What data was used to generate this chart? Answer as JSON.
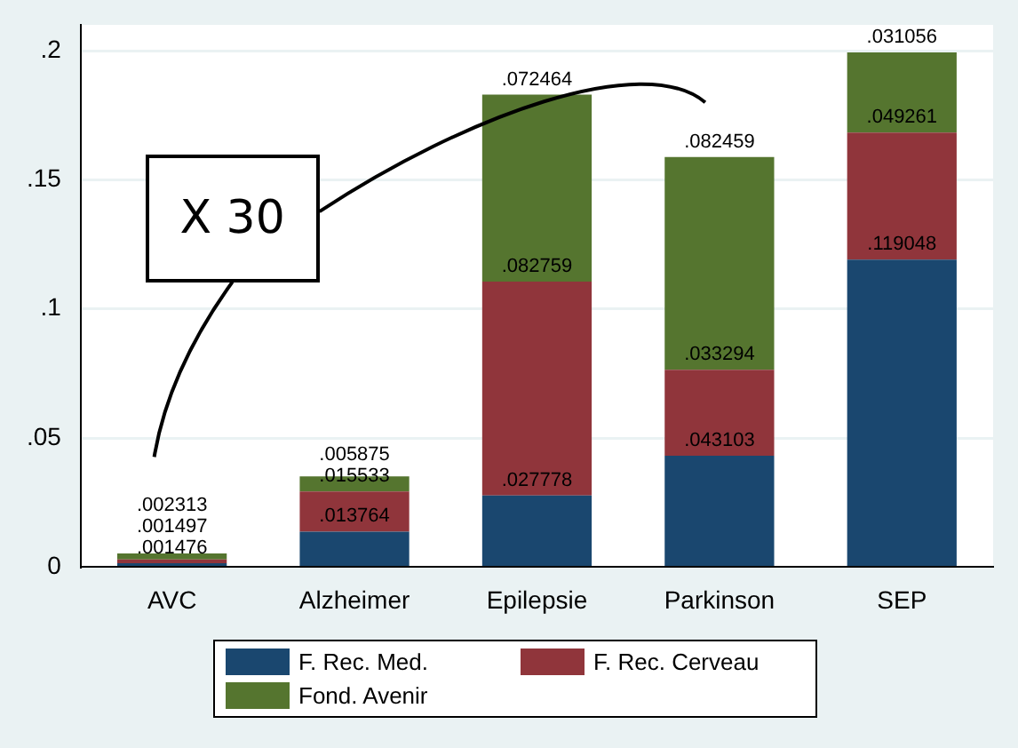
{
  "chart_data": {
    "type": "bar",
    "stacked": true,
    "categories": [
      "AVC",
      "Alzheimer",
      "Epilepsie",
      "Parkinson",
      "SEP"
    ],
    "series": [
      {
        "name": "F. Rec. Med.",
        "color": "#1a476f",
        "values": [
          0.001476,
          0.013764,
          0.027778,
          0.043103,
          0.119048
        ],
        "value_labels": [
          ".001476",
          ".013764",
          ".027778",
          ".043103",
          ".119048"
        ]
      },
      {
        "name": "F. Rec. Cerveau",
        "color": "#90353b",
        "values": [
          0.001497,
          0.015533,
          0.082759,
          0.033294,
          0.049261
        ],
        "value_labels": [
          ".001497",
          ".015533",
          ".082759",
          ".033294",
          ".049261"
        ]
      },
      {
        "name": "Fond. Avenir",
        "color": "#55752f",
        "values": [
          0.002313,
          0.005875,
          0.072464,
          0.082459,
          0.031056
        ],
        "value_labels": [
          ".002313",
          ".005875",
          ".072464",
          ".082459",
          ".031056"
        ]
      }
    ],
    "ylim": [
      0,
      0.21
    ],
    "yticks": [
      0,
      {
        "value": 0.05,
        "label": ".05"
      },
      {
        "value": 0.1,
        "label": ".1"
      },
      {
        "value": 0.15,
        "label": ".15"
      },
      {
        "value": 0.2,
        "label": ".2"
      }
    ],
    "grid": "y",
    "legend": "bottom",
    "annotations": [
      "X 30"
    ]
  }
}
